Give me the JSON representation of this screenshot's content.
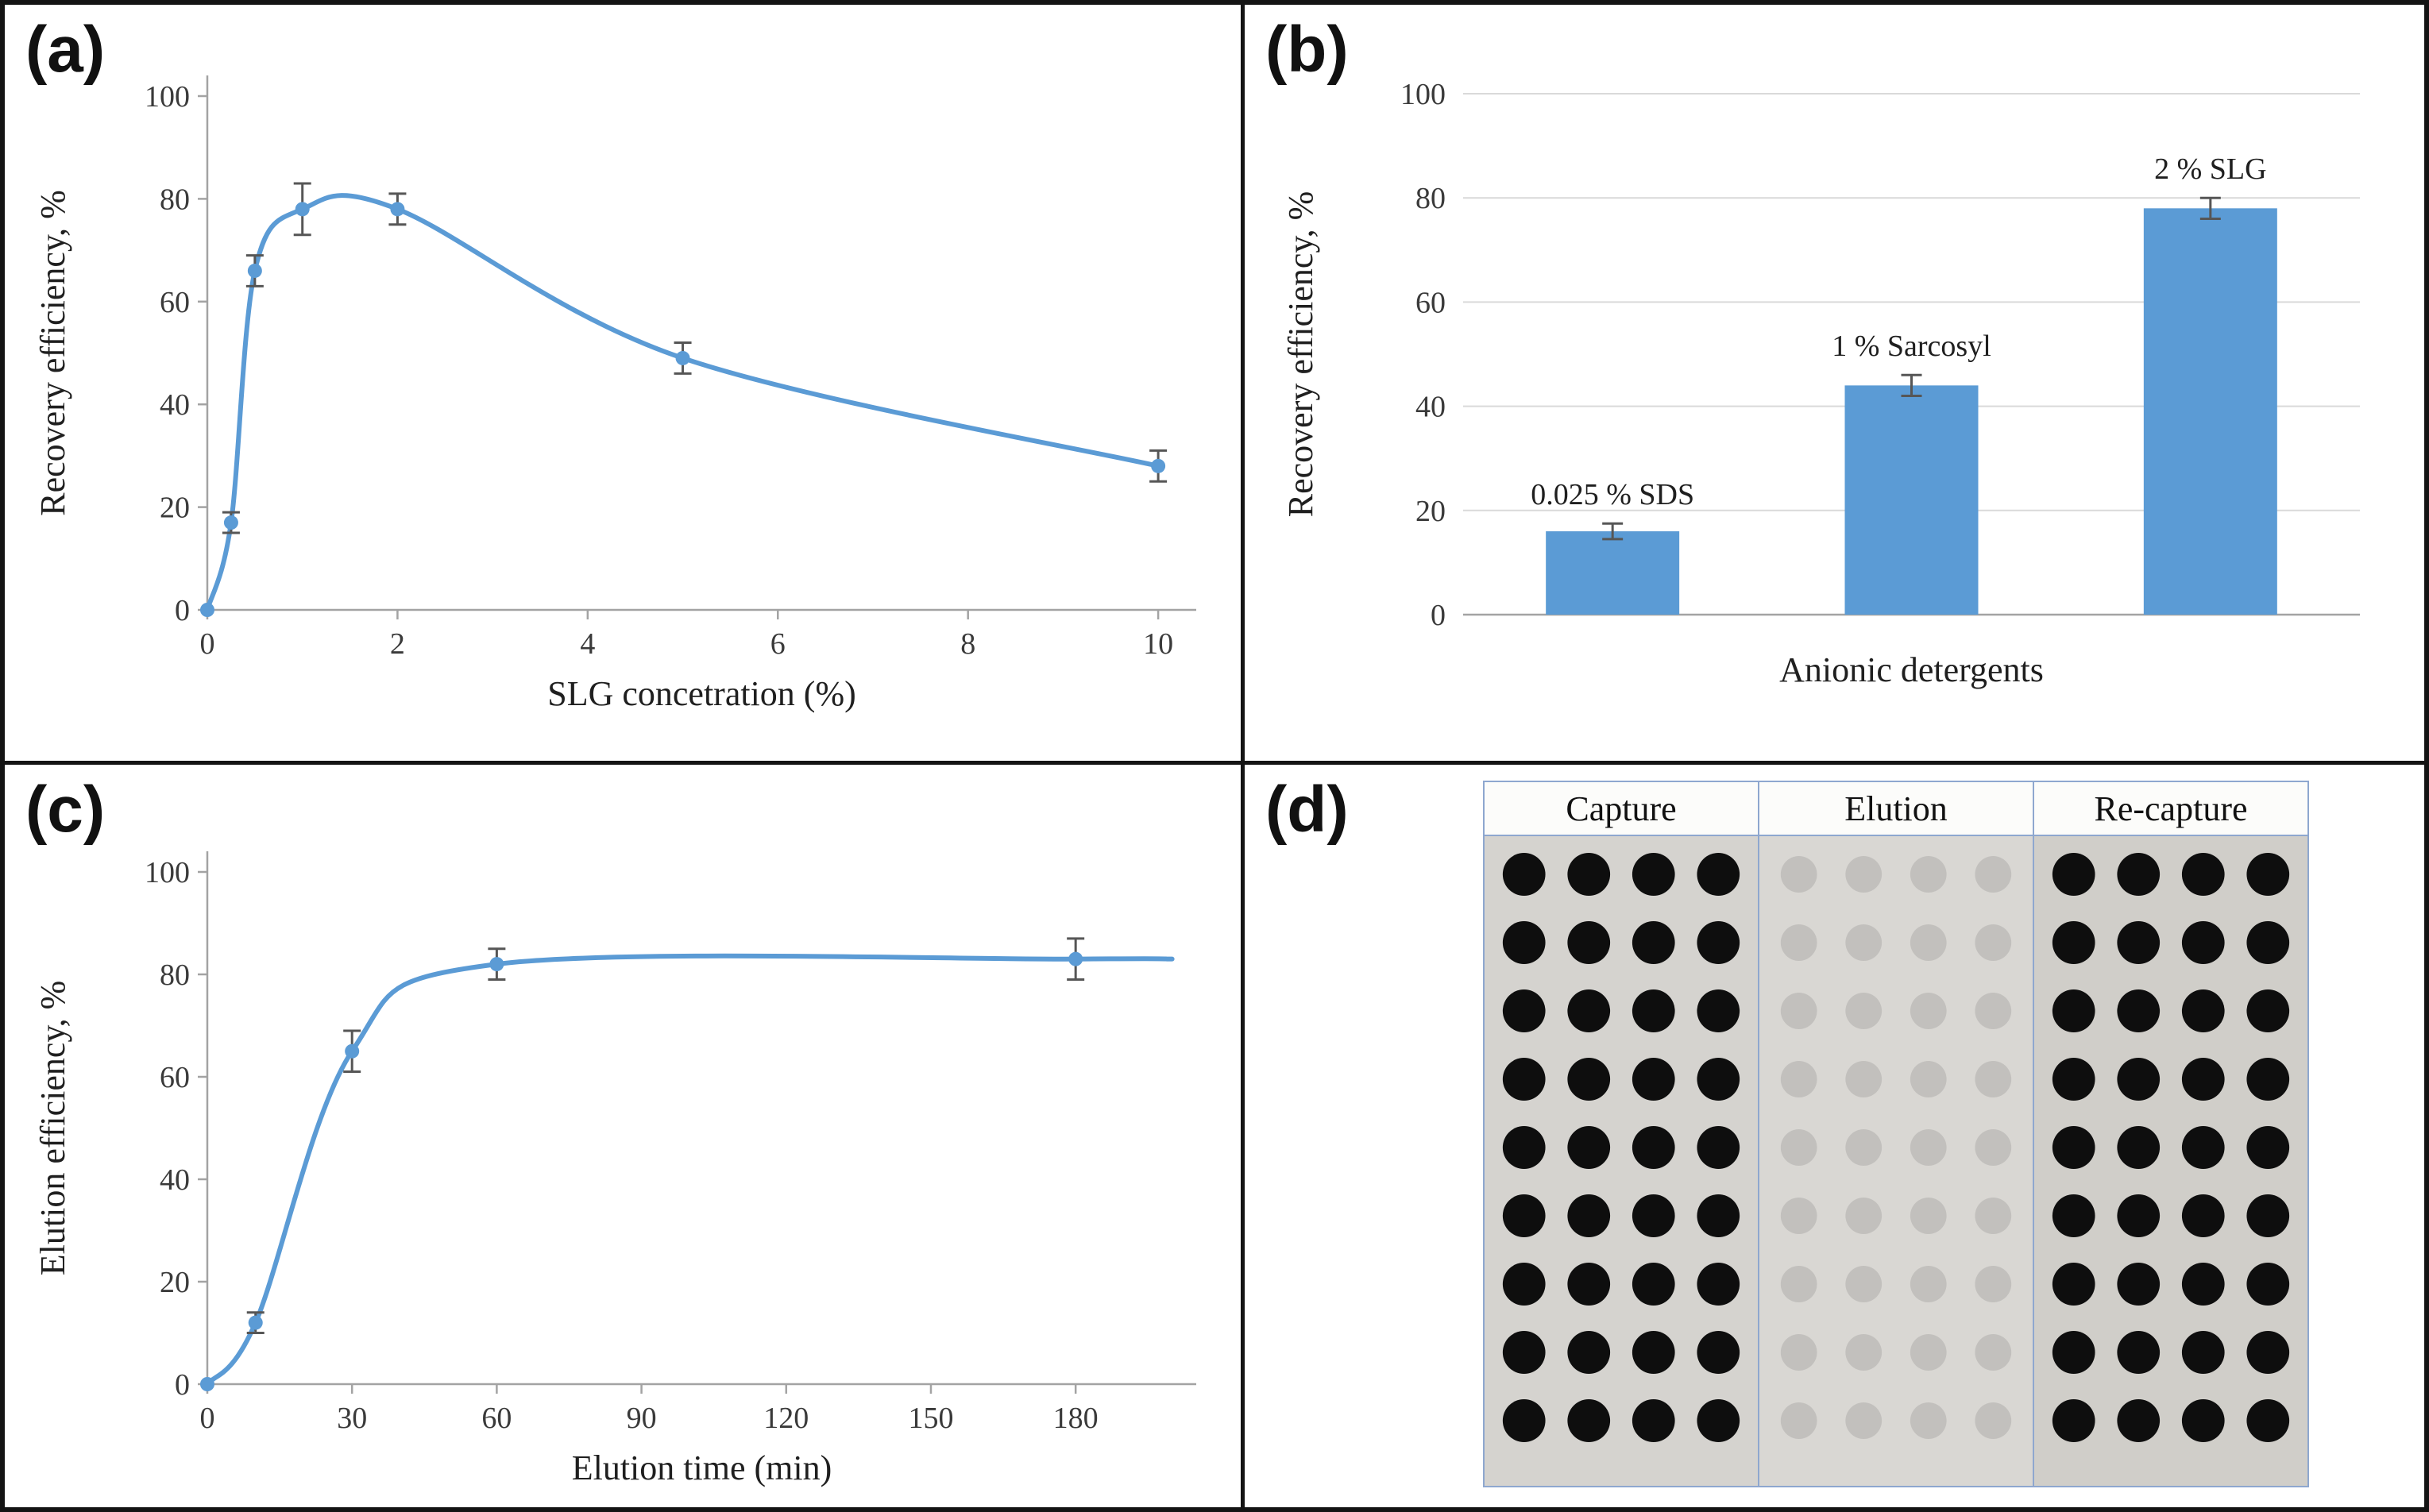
{
  "panels": {
    "a": {
      "label": "(a)"
    },
    "b": {
      "label": "(b)"
    },
    "c": {
      "label": "(c)"
    },
    "d": {
      "label": "(d)"
    }
  },
  "chart_data": [
    {
      "id": "a",
      "type": "line",
      "x": [
        0,
        0.25,
        0.5,
        1,
        2,
        5,
        10
      ],
      "y": [
        0,
        17,
        66,
        78,
        78,
        49,
        28
      ],
      "yerr": [
        0,
        2,
        3,
        5,
        3,
        3,
        3
      ],
      "xlabel": "SLG concetration (%)",
      "ylabel": "Recovery efficiency,  %",
      "xlim": [
        0,
        10.4
      ],
      "ylim": [
        0,
        100
      ],
      "xticks": [
        0,
        2,
        4,
        6,
        8,
        10
      ],
      "yticks": [
        0,
        20,
        40,
        60,
        80,
        100
      ],
      "grid": false,
      "line_color": "#5b9bd5"
    },
    {
      "id": "b",
      "type": "bar",
      "categories": [
        "0.025 % SDS",
        "1 % Sarcosyl",
        "2 % SLG"
      ],
      "values": [
        16,
        44,
        78
      ],
      "yerr": [
        1.5,
        2,
        2
      ],
      "xlabel": "Anionic detergents",
      "ylabel": "Recovery efficiency,  %",
      "ylim": [
        0,
        100
      ],
      "yticks": [
        0,
        20,
        40,
        60,
        80,
        100
      ],
      "grid": true,
      "bar_color": "#5b9bd5"
    },
    {
      "id": "c",
      "type": "line",
      "x": [
        0,
        10,
        30,
        60,
        180
      ],
      "y": [
        0,
        12,
        65,
        82,
        83
      ],
      "yerr": [
        0,
        2,
        4,
        3,
        4
      ],
      "xlabel": "Elution time (min)",
      "ylabel": "Elution efficiency,  %",
      "xlim": [
        0,
        205
      ],
      "ylim": [
        0,
        100
      ],
      "xticks": [
        0,
        30,
        60,
        90,
        120,
        150,
        180
      ],
      "yticks": [
        0,
        20,
        40,
        60,
        80,
        100
      ],
      "grid": false,
      "line_color": "#5b9bd5",
      "line_extend_x": 200
    }
  ],
  "blot": {
    "columns": [
      {
        "label": "Capture",
        "dot": "dark",
        "bg": "#d5d3cf"
      },
      {
        "label": "Elution",
        "dot": "faint",
        "bg": "#d9d7d3"
      },
      {
        "label": "Re-capture",
        "dot": "dark",
        "bg": "#d0cec9"
      }
    ],
    "rows": 9,
    "dots_per_row": 4,
    "colors": {
      "film_bg": "#d5d3cf",
      "dark_dot": "#0e0e0e",
      "faint_dot": "#c2c0bd",
      "frame": "#8ea7cf",
      "header_bg": "#fcfcfa"
    }
  }
}
